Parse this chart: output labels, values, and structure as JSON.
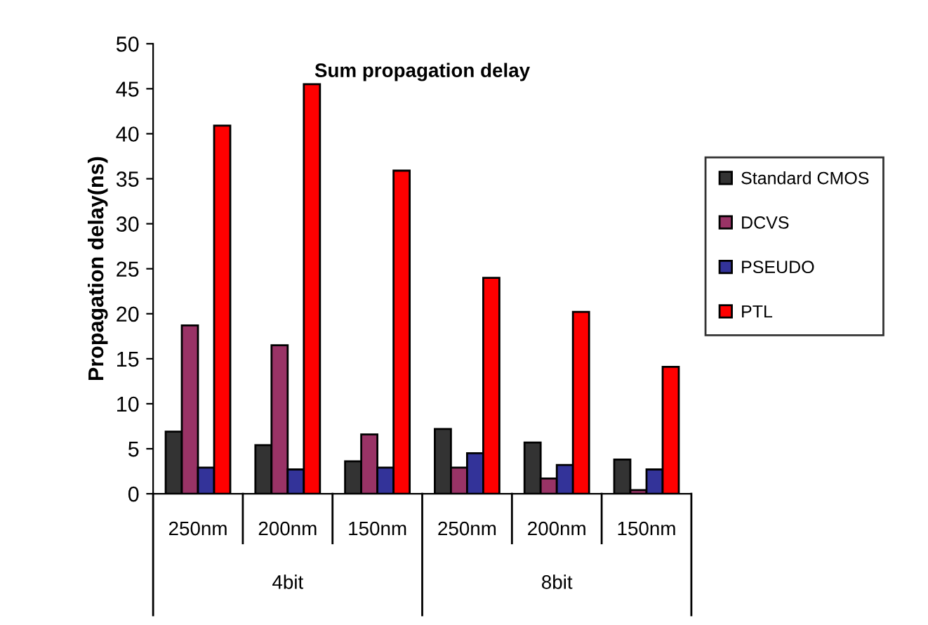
{
  "chart_data": {
    "type": "bar",
    "title": "Sum propagation delay",
    "ylabel": "Propagation delay(ns)",
    "categories": [
      "250nm",
      "200nm",
      "150nm",
      "250nm",
      "200nm",
      "150nm"
    ],
    "series": [
      {
        "name": "Standard CMOS",
        "color": "#333333",
        "values": [
          6.9,
          5.4,
          3.6,
          7.2,
          5.7,
          3.8
        ]
      },
      {
        "name": "DCVS",
        "color": "#993366",
        "values": [
          18.7,
          16.5,
          6.6,
          2.9,
          1.7,
          0.4
        ]
      },
      {
        "name": "PSEUDO",
        "color": "#333399",
        "values": [
          2.9,
          2.7,
          2.9,
          4.5,
          3.2,
          2.7
        ]
      },
      {
        "name": "PTL",
        "color": "#ff0000",
        "values": [
          40.9,
          45.5,
          35.9,
          24.0,
          20.2,
          14.1
        ]
      }
    ],
    "annotations": [
      "4bit",
      "8bit"
    ],
    "ylim": [
      0,
      50
    ],
    "yticks": [
      0,
      5,
      10,
      15,
      20,
      25,
      30,
      35,
      40,
      45,
      50
    ],
    "grid": false,
    "legend": "right"
  }
}
